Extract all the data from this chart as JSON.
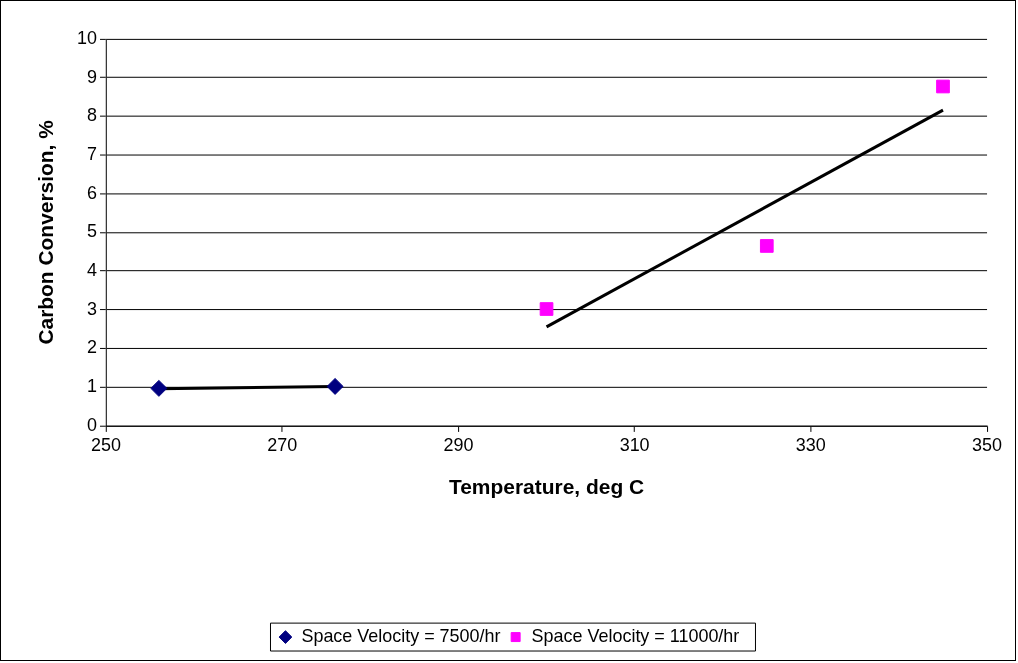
{
  "chart_data": {
    "type": "scatter",
    "xlabel": "Temperature, deg C",
    "ylabel": "Carbon Conversion, %",
    "xlim": [
      250,
      350
    ],
    "xticks": [
      250,
      270,
      290,
      310,
      330,
      350
    ],
    "ylim": [
      0,
      10
    ],
    "yticks": [
      0,
      1,
      2,
      3,
      4,
      5,
      6,
      7,
      8,
      9,
      10
    ],
    "grid": "y",
    "legend": "bottom",
    "series": [
      {
        "name": "Space Velocity = 7500/hr",
        "color": "#000080",
        "marker": "diamond",
        "x": [
          256,
          276
        ],
        "values": [
          0.97,
          1.02
        ]
      },
      {
        "name": "Space Velocity = 11000/hr",
        "color": "#ff00ff",
        "marker": "square",
        "x": [
          300,
          325,
          345
        ],
        "values": [
          3.02,
          4.65,
          8.77
        ]
      },
      {
        "type": "line",
        "color": "#000000",
        "marker": "none",
        "x": [
          256,
          276
        ],
        "values": [
          0.96,
          1.02
        ]
      },
      {
        "type": "line",
        "color": "#000000",
        "marker": "none",
        "x": [
          300,
          345
        ],
        "values": [
          2.56,
          8.16
        ]
      }
    ]
  }
}
